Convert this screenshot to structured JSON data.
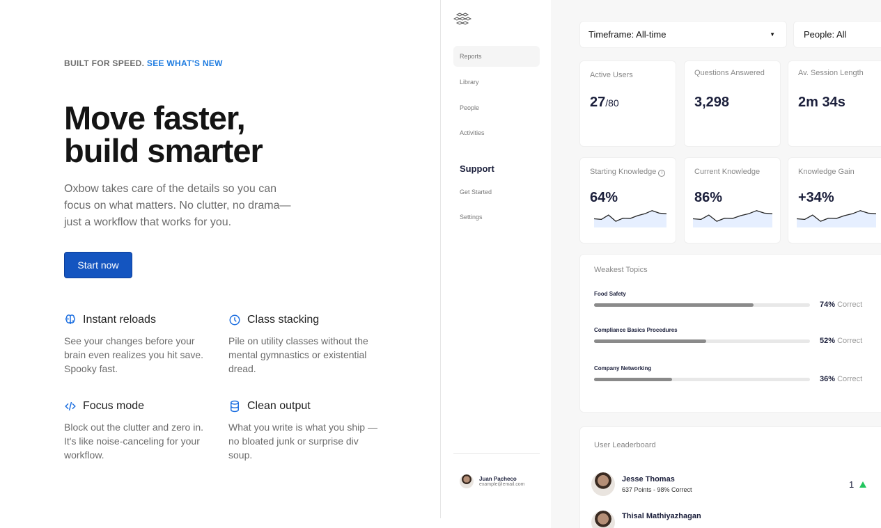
{
  "hero": {
    "eyebrow": "BUILT FOR SPEED.",
    "eyebrow_link": "SEE WHAT'S NEW",
    "title_line1": "Move faster,",
    "title_line2": "build smarter",
    "lead": "Oxbow takes care of the details so you can focus on what matters. No clutter, no drama—just a workflow that works for you.",
    "cta": "Start now",
    "accent": "#1455c0"
  },
  "features": [
    {
      "icon": "brain-icon",
      "title": "Instant reloads",
      "text": "See your changes before your brain even realizes you hit save. Spooky fast."
    },
    {
      "icon": "clock-icon",
      "title": "Class stacking",
      "text": "Pile on utility classes without the mental gymnastics or existential dread."
    },
    {
      "icon": "code-icon",
      "title": "Focus mode",
      "text": "Block out the clutter and zero in. It's like noise-canceling for your workflow."
    },
    {
      "icon": "database-icon",
      "title": "Clean output",
      "text": "What you write is what you ship — no bloated junk or surprise div soup."
    }
  ],
  "sidebar": {
    "items": [
      "Reports",
      "Library",
      "People",
      "Activities"
    ],
    "support_heading": "Support",
    "support_items": [
      "Get Started",
      "Settings"
    ],
    "user": {
      "name": "Juan Pacheco",
      "email": "example@email.com"
    }
  },
  "filters": {
    "timeframe": "Timeframe: All-time",
    "people": "People: All"
  },
  "stats": [
    {
      "label": "Active Users",
      "value": "27",
      "suffix": "/80"
    },
    {
      "label": "Questions Answered",
      "value": "3,298"
    },
    {
      "label": "Av. Session Length",
      "value": "2m 34s"
    }
  ],
  "knowledge": [
    {
      "label": "Starting Knowledge",
      "value": "64%"
    },
    {
      "label": "Current Knowledge",
      "value": "86%"
    },
    {
      "label": "Knowledge Gain",
      "value": "+34%"
    }
  ],
  "weakest": {
    "title": "Weakest Topics",
    "correct_label": "Correct",
    "topics": [
      {
        "name": "Food Safety",
        "pct": 74,
        "pct_label": "74%"
      },
      {
        "name": "Compliance Basics Procedures",
        "pct": 52,
        "pct_label": "52%"
      },
      {
        "name": "Company Networking",
        "pct": 36,
        "pct_label": "36%"
      }
    ]
  },
  "leaderboard": {
    "title": "User Leaderboard",
    "rows": [
      {
        "name": "Jesse Thomas",
        "detail": "637 Points - 98% Correct",
        "rank": "1",
        "trend": "up"
      },
      {
        "name": "Thisal Mathiyazhagan"
      }
    ],
    "up_color": "#22c55e"
  }
}
